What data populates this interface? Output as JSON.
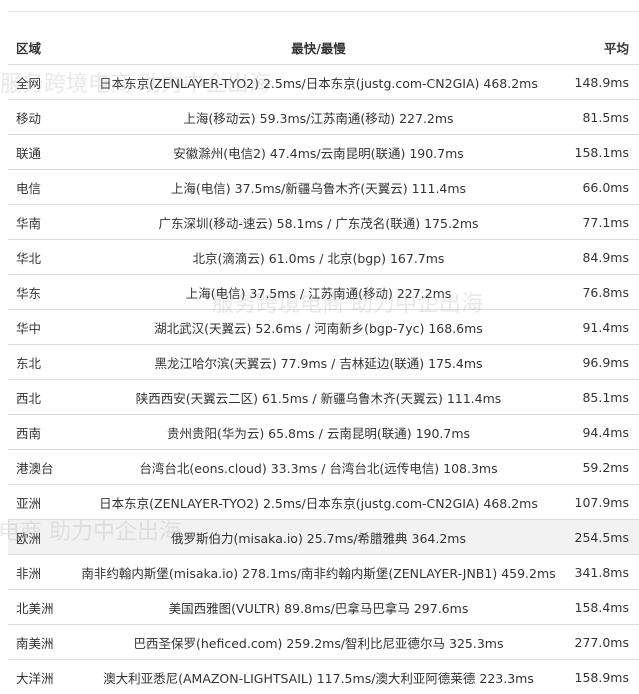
{
  "table": {
    "headers": {
      "region": "区域",
      "range": "最快/最慢",
      "avg": "平均"
    },
    "rows": [
      {
        "region": "全网",
        "range": "日本东京(ZENLAYER-TYO2) 2.5ms/日本东京(justg.com-CN2GIA) 468.2ms",
        "avg": "148.9ms"
      },
      {
        "region": "移动",
        "range": "上海(移动云) 59.3ms/江苏南通(移动) 227.2ms",
        "avg": "81.5ms"
      },
      {
        "region": "联通",
        "range": "安徽滁州(电信2) 47.4ms/云南昆明(联通) 190.7ms",
        "avg": "158.1ms"
      },
      {
        "region": "电信",
        "range": "上海(电信) 37.5ms/新疆乌鲁木齐(天翼云) 111.4ms",
        "avg": "66.0ms"
      },
      {
        "region": "华南",
        "range": "广东深圳(移动-速云) 58.1ms / 广东茂名(联通) 175.2ms",
        "avg": "77.1ms"
      },
      {
        "region": "华北",
        "range": "北京(滴滴云) 61.0ms / 北京(bgp) 167.7ms",
        "avg": "84.9ms"
      },
      {
        "region": "华东",
        "range": "上海(电信) 37.5ms / 江苏南通(移动) 227.2ms",
        "avg": "76.8ms"
      },
      {
        "region": "华中",
        "range": "湖北武汉(天翼云) 52.6ms / 河南新乡(bgp-7yc) 168.6ms",
        "avg": "91.4ms"
      },
      {
        "region": "东北",
        "range": "黑龙江哈尔滨(天翼云) 77.9ms / 吉林延边(联通) 175.4ms",
        "avg": "96.9ms"
      },
      {
        "region": "西北",
        "range": "陕西西安(天翼云二区) 61.5ms / 新疆乌鲁木齐(天翼云) 111.4ms",
        "avg": "85.1ms"
      },
      {
        "region": "西南",
        "range": "贵州贵阳(华为云) 65.8ms / 云南昆明(联通) 190.7ms",
        "avg": "94.4ms"
      },
      {
        "region": "港澳台",
        "range": "台湾台北(eons.cloud) 33.3ms / 台湾台北(远传电信) 108.3ms",
        "avg": "59.2ms"
      },
      {
        "region": "亚洲",
        "range": "日本东京(ZENLAYER-TYO2) 2.5ms/日本东京(justg.com-CN2GIA) 468.2ms",
        "avg": "107.9ms"
      },
      {
        "region": "欧洲",
        "range": "俄罗斯伯力(misaka.io) 25.7ms/希腊雅典 364.2ms",
        "avg": "254.5ms"
      },
      {
        "region": "非洲",
        "range": "南非约翰内斯堡(misaka.io) 278.1ms/南非约翰内斯堡(ZENLAYER-JNB1) 459.2ms",
        "avg": "341.8ms"
      },
      {
        "region": "北美洲",
        "range": "美国西雅图(VULTR) 89.8ms/巴拿马巴拿马 297.6ms",
        "avg": "158.4ms"
      },
      {
        "region": "南美洲",
        "range": "巴西圣保罗(heficed.com) 259.2ms/智利比尼亚德尔马 325.3ms",
        "avg": "277.0ms"
      },
      {
        "region": "大洋洲",
        "range": "澳大利亚悉尼(AMAZON-LIGHTSAIL) 117.5ms/澳大利亚阿德莱德 223.3ms",
        "avg": "158.9ms"
      }
    ],
    "highlighted_row": 13
  },
  "watermark": {
    "text": "服务跨境电商 助力中企出海"
  }
}
